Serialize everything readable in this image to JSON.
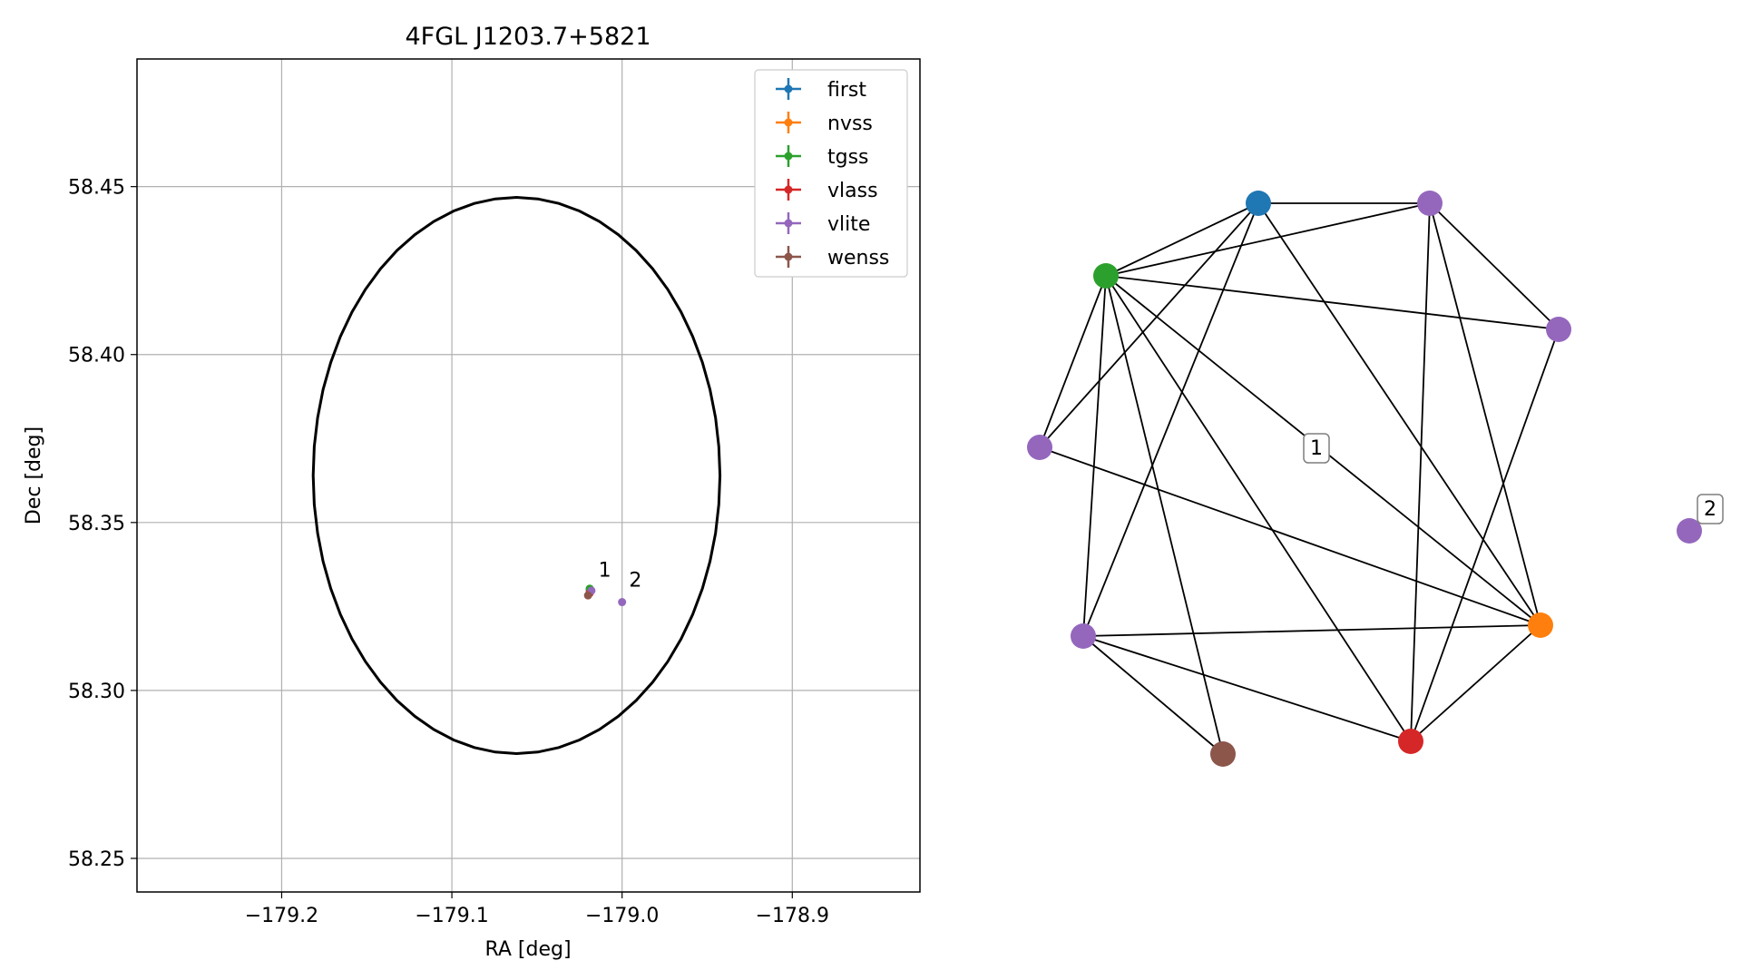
{
  "chart_data": [
    {
      "type": "scatter",
      "title": "4FGL J1203.7+5821",
      "xlabel": "RA [deg]",
      "ylabel": "Dec [deg]",
      "xlim": [
        -179.285,
        -178.825
      ],
      "ylim": [
        58.24,
        58.488
      ],
      "xticks": [
        -179.2,
        -179.1,
        -179.0,
        -178.9
      ],
      "xtick_labels": [
        "−179.2",
        "−179.1",
        "−179.0",
        "−178.9"
      ],
      "yticks": [
        58.25,
        58.3,
        58.35,
        58.4,
        58.45
      ],
      "ytick_labels": [
        "58.25",
        "58.30",
        "58.35",
        "58.40",
        "58.45"
      ],
      "grid": true,
      "legend_position": "top-right",
      "ellipse": {
        "center_ra": -179.062,
        "center_dec": 58.364,
        "half_width_ra": 0.1195,
        "half_height_dec": 0.0828,
        "color": "#000000"
      },
      "series": [
        {
          "name": "first",
          "color": "#1f77b4",
          "points": [
            {
              "x": -179.019,
              "y": 58.3298
            }
          ]
        },
        {
          "name": "nvss",
          "color": "#ff7f0e",
          "points": [
            {
              "x": -179.019,
              "y": 58.3293
            }
          ]
        },
        {
          "name": "tgss",
          "color": "#2ca02c",
          "points": [
            {
              "x": -179.019,
              "y": 58.3303
            }
          ]
        },
        {
          "name": "vlass",
          "color": "#d62728",
          "points": [
            {
              "x": -179.019,
              "y": 58.329
            }
          ]
        },
        {
          "name": "vlite",
          "color": "#9467bd",
          "points": [
            {
              "x": -179.018,
              "y": 58.3297
            },
            {
              "x": -179.0,
              "y": 58.3263
            }
          ]
        },
        {
          "name": "wenss",
          "color": "#8c564b",
          "points": [
            {
              "x": -179.02,
              "y": 58.3283
            }
          ]
        }
      ],
      "annotations": [
        {
          "text": "1",
          "x": -179.016,
          "y": 58.3317
        },
        {
          "text": "2",
          "x": -178.998,
          "y": 58.3287
        }
      ]
    },
    {
      "type": "network",
      "nodes": [
        {
          "id": "first",
          "color": "#1f77b4"
        },
        {
          "id": "vlite_a",
          "color": "#9467bd"
        },
        {
          "id": "tgss",
          "color": "#2ca02c"
        },
        {
          "id": "vlite_b",
          "color": "#9467bd"
        },
        {
          "id": "vlite_c",
          "color": "#9467bd"
        },
        {
          "id": "vlite_d",
          "color": "#9467bd"
        },
        {
          "id": "wenss",
          "color": "#8c564b"
        },
        {
          "id": "vlass",
          "color": "#d62728"
        },
        {
          "id": "nvss",
          "color": "#ff7f0e"
        },
        {
          "id": "vlite_e",
          "color": "#9467bd"
        }
      ],
      "edges": [
        [
          "first",
          "vlite_a"
        ],
        [
          "first",
          "tgss"
        ],
        [
          "first",
          "vlite_c"
        ],
        [
          "first",
          "vlite_d"
        ],
        [
          "first",
          "nvss"
        ],
        [
          "vlite_a",
          "tgss"
        ],
        [
          "vlite_a",
          "vlite_b"
        ],
        [
          "vlite_a",
          "vlass"
        ],
        [
          "vlite_a",
          "nvss"
        ],
        [
          "tgss",
          "vlite_b"
        ],
        [
          "tgss",
          "vlite_c"
        ],
        [
          "tgss",
          "vlite_d"
        ],
        [
          "tgss",
          "wenss"
        ],
        [
          "tgss",
          "vlass"
        ],
        [
          "tgss",
          "nvss"
        ],
        [
          "vlite_b",
          "vlass"
        ],
        [
          "vlite_c",
          "nvss"
        ],
        [
          "vlite_d",
          "wenss"
        ],
        [
          "vlite_d",
          "vlass"
        ],
        [
          "vlite_d",
          "nvss"
        ],
        [
          "vlass",
          "nvss"
        ]
      ],
      "group_labels": [
        "1",
        "2"
      ]
    }
  ]
}
